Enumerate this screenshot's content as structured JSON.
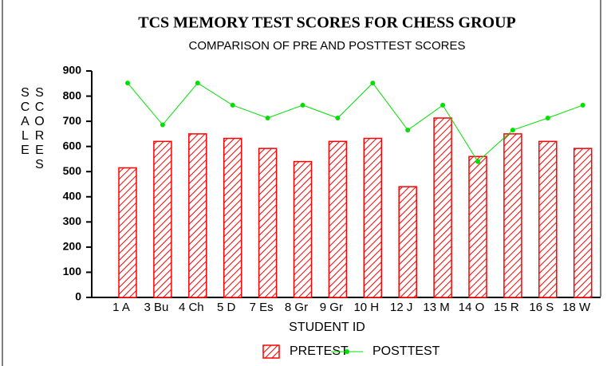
{
  "chart_data": {
    "type": "bar_line",
    "title": "TCS MEMORY TEST SCORES FOR CHESS GROUP",
    "subtitle": "COMPARISON OF PRE AND POSTTEST SCORES",
    "x_label": "STUDENT ID",
    "y_label": "SCALE SCORES",
    "categories": [
      "1 A",
      "3 Bu",
      "4 Ch",
      "5 D",
      "7 Es",
      "8 Gr",
      "9 Gr",
      "10 H",
      "12 J",
      "13 M",
      "14 O",
      "15 R",
      "16 S",
      "18 W"
    ],
    "series": [
      {
        "name": "PRETEST",
        "type": "bar",
        "color": "#ff0000",
        "values": [
          515,
          620,
          650,
          632,
          592,
          540,
          620,
          632,
          440,
          713,
          560,
          650,
          620,
          592
        ]
      },
      {
        "name": "POSTTEST",
        "type": "line",
        "color": "#00e000",
        "values": [
          852,
          686,
          852,
          764,
          713,
          764,
          713,
          852,
          665,
          764,
          540,
          665,
          713,
          764
        ]
      }
    ],
    "ylim": [
      0,
      900
    ],
    "yticks": [
      0,
      100,
      200,
      300,
      400,
      500,
      600,
      700,
      800,
      900
    ],
    "grid": false,
    "legend": "bottom"
  }
}
